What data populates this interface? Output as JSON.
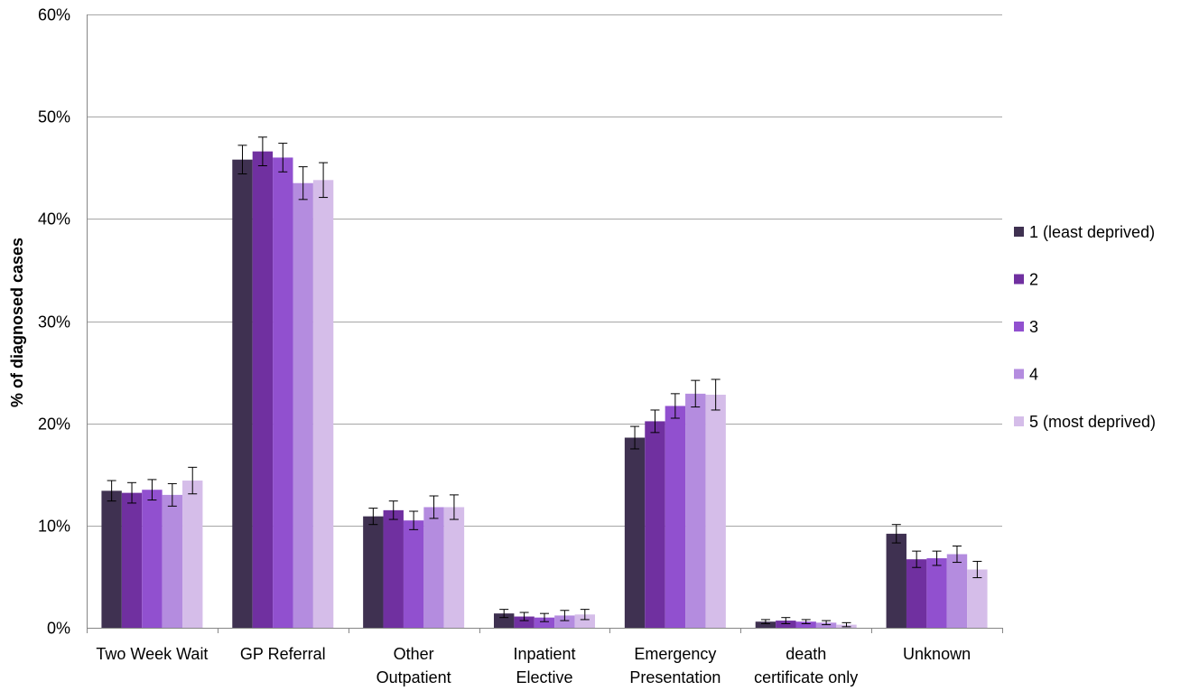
{
  "chart_data": {
    "type": "bar",
    "ylabel": "% of diagnosed cases",
    "xlabel": "",
    "ylim": [
      0,
      60
    ],
    "yticks": [
      0,
      10,
      20,
      30,
      40,
      50,
      60
    ],
    "ytick_labels": [
      "0%",
      "10%",
      "20%",
      "30%",
      "40%",
      "50%",
      "60%"
    ],
    "grid": "horizontal",
    "legend_position": "right",
    "categories": [
      [
        "Two Week Wait"
      ],
      [
        "GP Referral"
      ],
      [
        "Other",
        "Outpatient"
      ],
      [
        "Inpatient",
        "Elective"
      ],
      [
        "Emergency",
        "Presentation"
      ],
      [
        "death",
        "certificate only"
      ],
      [
        "Unknown"
      ]
    ],
    "series": [
      {
        "name": "1 (least deprived)",
        "color": "#3f3151",
        "values": [
          13.4,
          45.8,
          10.9,
          1.4,
          18.6,
          0.6,
          9.2
        ],
        "err": [
          1.0,
          1.4,
          0.8,
          0.4,
          1.1,
          0.2,
          0.9
        ]
      },
      {
        "name": "2",
        "color": "#7030a0",
        "values": [
          13.2,
          46.6,
          11.5,
          1.1,
          20.2,
          0.7,
          6.7
        ],
        "err": [
          1.0,
          1.4,
          0.9,
          0.4,
          1.1,
          0.3,
          0.8
        ]
      },
      {
        "name": "3",
        "color": "#9150cf",
        "values": [
          13.5,
          46.0,
          10.5,
          1.0,
          21.7,
          0.6,
          6.8
        ],
        "err": [
          1.0,
          1.4,
          0.9,
          0.4,
          1.2,
          0.2,
          0.7
        ]
      },
      {
        "name": "4",
        "color": "#b48cdf",
        "values": [
          13.0,
          43.5,
          11.8,
          1.2,
          22.9,
          0.5,
          7.2
        ],
        "err": [
          1.1,
          1.6,
          1.1,
          0.5,
          1.3,
          0.2,
          0.8
        ]
      },
      {
        "name": "5 (most deprived)",
        "color": "#d5bde9",
        "values": [
          14.4,
          43.8,
          11.8,
          1.3,
          22.8,
          0.3,
          5.7
        ],
        "err": [
          1.3,
          1.7,
          1.2,
          0.5,
          1.5,
          0.2,
          0.8
        ]
      }
    ]
  }
}
